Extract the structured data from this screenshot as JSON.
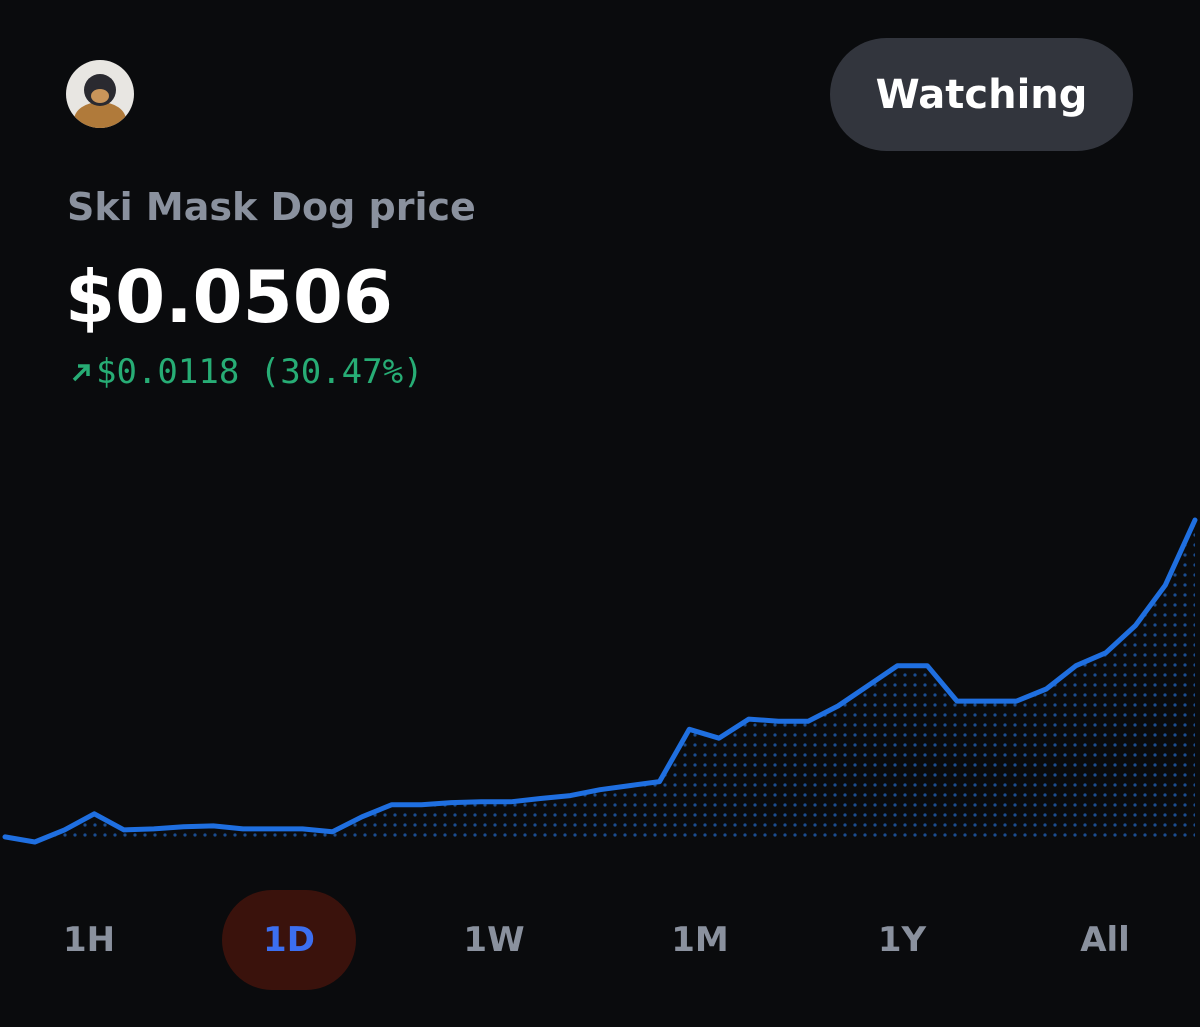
{
  "header": {
    "button": "Watching"
  },
  "asset": {
    "title": "Ski Mask Dog price",
    "price": "$0.0506",
    "change": "$0.0118 (30.47%)"
  },
  "chart_data": {
    "type": "line",
    "color": "#1f6fe0",
    "values": [
      0.0388,
      0.03861,
      0.03906,
      0.03966,
      0.03906,
      0.0391,
      0.03918,
      0.03921,
      0.0391,
      0.0391,
      0.0391,
      0.03899,
      0.03955,
      0.04,
      0.04,
      0.04008,
      0.04011,
      0.04011,
      0.04023,
      0.04034,
      0.04056,
      0.04071,
      0.04086,
      0.04281,
      0.04248,
      0.04319,
      0.04311,
      0.04311,
      0.04368,
      0.04443,
      0.04518,
      0.04518,
      0.04386,
      0.04386,
      0.04386,
      0.04431,
      0.04518,
      0.04566,
      0.04668,
      0.04818,
      0.05061
    ]
  },
  "ranges": {
    "items": [
      "1H",
      "1D",
      "1W",
      "1M",
      "1Y",
      "All"
    ],
    "selected": 1
  }
}
